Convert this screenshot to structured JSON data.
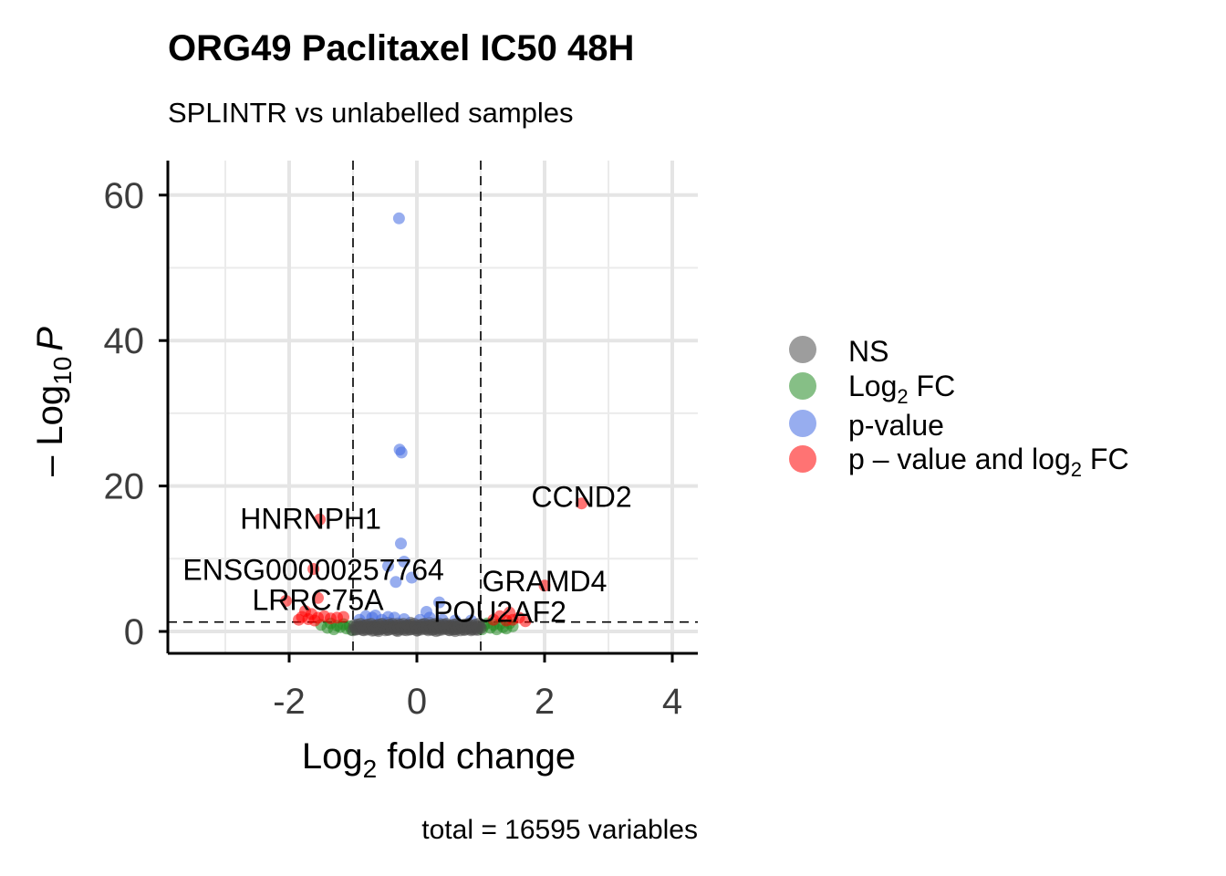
{
  "chart_data": {
    "type": "scatter",
    "title": "ORG49 Paclitaxel IC50 48H",
    "subtitle": "SPLINTR vs unlabelled samples",
    "xlabel": {
      "main": "Log",
      "sub": "2",
      "rest": " fold change"
    },
    "ylabel": {
      "prefix": "– Log",
      "sub": "10",
      "var": "P"
    },
    "xlim": [
      -3.9,
      4.4
    ],
    "ylim": [
      -3,
      64.5
    ],
    "x_ticks": [
      -2,
      0,
      2,
      4
    ],
    "x_tick_labels": [
      "-2",
      "0",
      "2",
      "4"
    ],
    "y_ticks": [
      0,
      20,
      40,
      60
    ],
    "y_tick_labels": [
      "0",
      "20",
      "40",
      "60"
    ],
    "grid": true,
    "fc_cutoff": 1,
    "p_cutoff_neglog10": 1.3,
    "caption": "total = 16595 variables",
    "legend": {
      "position": "right",
      "entries": [
        {
          "key": "ns",
          "label": "NS",
          "color": "#4d4d4d"
        },
        {
          "key": "fc",
          "label_main": "Log",
          "label_sub": "2",
          "label_rest": " FC",
          "color": "#228b22"
        },
        {
          "key": "p",
          "label": "p-value",
          "color": "#4169e1"
        },
        {
          "key": "both",
          "label_main": "p – value and log",
          "label_sub": "2",
          "label_rest": " FC",
          "color": "#ff0000"
        }
      ]
    },
    "series": [
      {
        "key": "ns",
        "color": "#4d4d4d",
        "points": [
          [
            -0.95,
            0.3
          ],
          [
            -0.9,
            0.6
          ],
          [
            -0.85,
            0.2
          ],
          [
            -0.8,
            0.9
          ],
          [
            -0.75,
            0.4
          ],
          [
            -0.7,
            0.1
          ],
          [
            -0.65,
            0.7
          ],
          [
            -0.6,
            0.3
          ],
          [
            -0.55,
            1.0
          ],
          [
            -0.5,
            0.5
          ],
          [
            -0.45,
            0.2
          ],
          [
            -0.4,
            0.8
          ],
          [
            -0.35,
            0.4
          ],
          [
            -0.3,
            1.1
          ],
          [
            -0.25,
            0.6
          ],
          [
            -0.2,
            0.2
          ],
          [
            -0.15,
            0.9
          ],
          [
            -0.1,
            0.3
          ],
          [
            -0.05,
            0.7
          ],
          [
            0.0,
            0.1
          ],
          [
            0.05,
            0.5
          ],
          [
            0.1,
            1.0
          ],
          [
            0.15,
            0.3
          ],
          [
            0.2,
            0.8
          ],
          [
            0.25,
            0.2
          ],
          [
            0.3,
            0.6
          ],
          [
            0.35,
            1.1
          ],
          [
            0.4,
            0.4
          ],
          [
            0.45,
            0.9
          ],
          [
            0.5,
            0.2
          ],
          [
            0.55,
            0.7
          ],
          [
            0.6,
            0.3
          ],
          [
            0.65,
            0.8
          ],
          [
            0.7,
            0.5
          ],
          [
            0.75,
            0.2
          ],
          [
            0.8,
            0.6
          ],
          [
            0.85,
            0.3
          ],
          [
            0.9,
            0.5
          ],
          [
            0.95,
            0.2
          ],
          [
            -0.6,
            0.05
          ],
          [
            -0.3,
            0.05
          ],
          [
            0.0,
            0.4
          ],
          [
            0.3,
            0.05
          ],
          [
            0.6,
            0.05
          ],
          [
            -0.45,
            1.2
          ],
          [
            0.2,
            1.2
          ],
          [
            -0.1,
            1.2
          ]
        ]
      },
      {
        "key": "fc",
        "color": "#228b22",
        "points": [
          [
            -1.5,
            0.9
          ],
          [
            -1.4,
            0.5
          ],
          [
            -1.35,
            1.1
          ],
          [
            -1.3,
            0.3
          ],
          [
            -1.25,
            0.8
          ],
          [
            -1.2,
            0.6
          ],
          [
            -1.15,
            1.0
          ],
          [
            -1.1,
            0.4
          ],
          [
            -1.05,
            0.7
          ],
          [
            -1.02,
            0.2
          ],
          [
            1.02,
            0.3
          ],
          [
            1.05,
            0.8
          ],
          [
            1.1,
            1.1
          ],
          [
            1.15,
            0.5
          ],
          [
            1.2,
            0.9
          ],
          [
            1.25,
            0.3
          ],
          [
            1.3,
            1.0
          ],
          [
            1.35,
            0.6
          ],
          [
            1.4,
            0.4
          ],
          [
            1.45,
            1.1
          ],
          [
            1.5,
            0.7
          ]
        ]
      },
      {
        "key": "p",
        "color": "#4169e1",
        "points": [
          [
            -0.28,
            56.8
          ],
          [
            -0.27,
            25.0
          ],
          [
            -0.24,
            24.6
          ],
          [
            -0.25,
            12.1
          ],
          [
            -0.2,
            9.6
          ],
          [
            -0.33,
            6.8
          ],
          [
            -0.08,
            7.4
          ],
          [
            -0.45,
            9.0
          ],
          [
            0.35,
            4.0
          ],
          [
            0.15,
            2.7
          ],
          [
            -0.45,
            2.0
          ],
          [
            -0.65,
            2.2
          ],
          [
            -0.8,
            2.1
          ],
          [
            -0.7,
            1.9
          ],
          [
            -0.55,
            1.6
          ],
          [
            -0.35,
            1.9
          ],
          [
            -0.2,
            1.7
          ],
          [
            0.05,
            1.6
          ],
          [
            0.2,
            1.9
          ],
          [
            0.4,
            1.6
          ],
          [
            0.6,
            1.5
          ],
          [
            0.85,
            1.5
          ],
          [
            -0.9,
            1.6
          ]
        ]
      },
      {
        "key": "both",
        "color": "#ff0000",
        "points": [
          [
            -1.52,
            15.4
          ],
          [
            -1.62,
            8.6
          ],
          [
            -1.55,
            4.6
          ],
          [
            -2.05,
            4.2
          ],
          [
            -1.75,
            2.8
          ],
          [
            -1.8,
            2.0
          ],
          [
            -1.7,
            1.7
          ],
          [
            -1.65,
            2.4
          ],
          [
            -1.55,
            1.9
          ],
          [
            -1.45,
            2.1
          ],
          [
            -1.35,
            1.8
          ],
          [
            -1.25,
            1.9
          ],
          [
            -1.15,
            2.0
          ],
          [
            -1.6,
            1.5
          ],
          [
            -1.85,
            1.6
          ],
          [
            2.58,
            17.6
          ],
          [
            2.0,
            6.3
          ],
          [
            1.3,
            2.1
          ],
          [
            1.45,
            2.6
          ],
          [
            1.6,
            1.9
          ],
          [
            1.5,
            1.6
          ],
          [
            1.7,
            1.4
          ],
          [
            1.2,
            1.6
          ],
          [
            1.4,
            1.5
          ]
        ]
      }
    ],
    "labels": [
      {
        "text": "CCND2",
        "x": 2.58,
        "y": 17.6
      },
      {
        "text": "HNRNPH1",
        "x": -1.52,
        "y": 15.4
      },
      {
        "text": "ENSG00000257764",
        "x": -1.62,
        "y": 8.6
      },
      {
        "text": "GRAMD4",
        "x": 2.0,
        "y": 6.3
      },
      {
        "text": "LRRC75A",
        "x": -2.05,
        "y": 4.2
      },
      {
        "text": "POU2AF2",
        "x": 1.3,
        "y": 2.1
      }
    ]
  }
}
